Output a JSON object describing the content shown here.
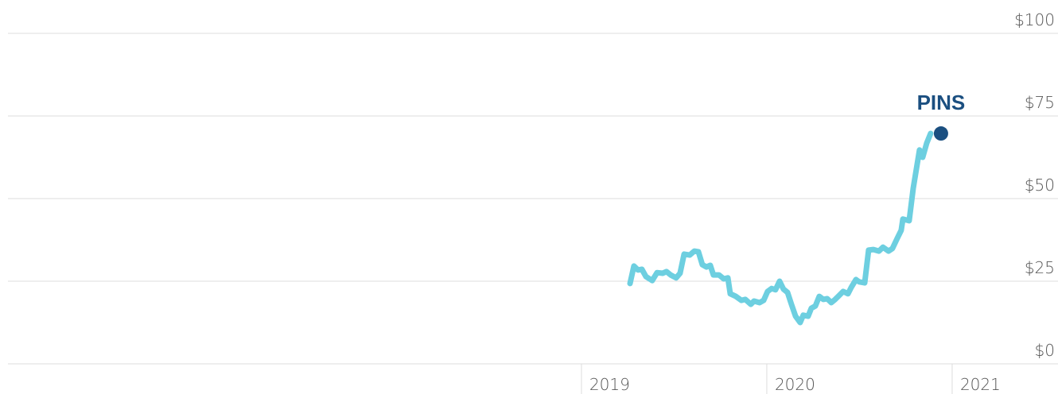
{
  "chart_data": {
    "type": "line",
    "series": [
      {
        "name": "PINS",
        "color": "#6dcfe0",
        "marker_color": "#1b4f80",
        "x": [
          2019.262,
          2019.283,
          2019.305,
          2019.326,
          2019.348,
          2019.382,
          2019.408,
          2019.438,
          2019.459,
          2019.481,
          2019.511,
          2019.532,
          2019.554,
          2019.584,
          2019.609,
          2019.631,
          2019.652,
          2019.674,
          2019.695,
          2019.712,
          2019.742,
          2019.768,
          2019.79,
          2019.803,
          2019.833,
          2019.863,
          2019.884,
          2019.914,
          2019.931,
          2019.961,
          2019.983,
          2020.004,
          2020.026,
          2020.047,
          2020.069,
          2020.09,
          2020.112,
          2020.133,
          2020.155,
          2020.18,
          2020.197,
          2020.223,
          2020.24,
          2020.262,
          2020.283,
          2020.305,
          2020.326,
          2020.348,
          2020.369,
          2020.391,
          2020.412,
          2020.438,
          2020.455,
          2020.481,
          2020.498,
          2020.528,
          2020.549,
          2020.575,
          2020.605,
          2020.627,
          2020.657,
          2020.678,
          2020.704,
          2020.725,
          2020.734,
          2020.768,
          2020.79,
          2020.824,
          2020.841,
          2020.863,
          2020.884
        ],
        "values": [
          24.3,
          29.6,
          28.4,
          28.6,
          26.4,
          25.2,
          27.6,
          27.4,
          27.9,
          26.9,
          26.0,
          27.4,
          33.2,
          32.9,
          34.1,
          33.9,
          30.0,
          29.3,
          29.8,
          26.9,
          26.9,
          25.7,
          26.0,
          21.2,
          20.4,
          19.2,
          19.5,
          18.0,
          19.0,
          18.5,
          19.2,
          21.9,
          22.8,
          22.4,
          25.0,
          22.6,
          21.6,
          18.0,
          14.4,
          12.5,
          14.7,
          14.4,
          16.8,
          17.5,
          20.4,
          19.5,
          19.7,
          18.5,
          19.5,
          20.7,
          21.9,
          21.2,
          23.1,
          25.5,
          24.8,
          24.5,
          34.4,
          34.6,
          34.1,
          35.3,
          34.1,
          34.9,
          38.0,
          40.4,
          43.8,
          43.3,
          53.1,
          64.7,
          62.5,
          66.8,
          69.7
        ]
      }
    ],
    "xlim": [
      2015.906,
      2021.571
    ],
    "xticks": [
      2019,
      2020,
      2021
    ],
    "ylim": [
      0,
      100
    ],
    "yticks": [
      {
        "value": 0,
        "label": "$0"
      },
      {
        "value": 25,
        "label": "$25"
      },
      {
        "value": 50,
        "label": "$50"
      },
      {
        "value": 75,
        "label": "$75"
      },
      {
        "value": 100,
        "label": "$100"
      }
    ],
    "grid": true
  }
}
